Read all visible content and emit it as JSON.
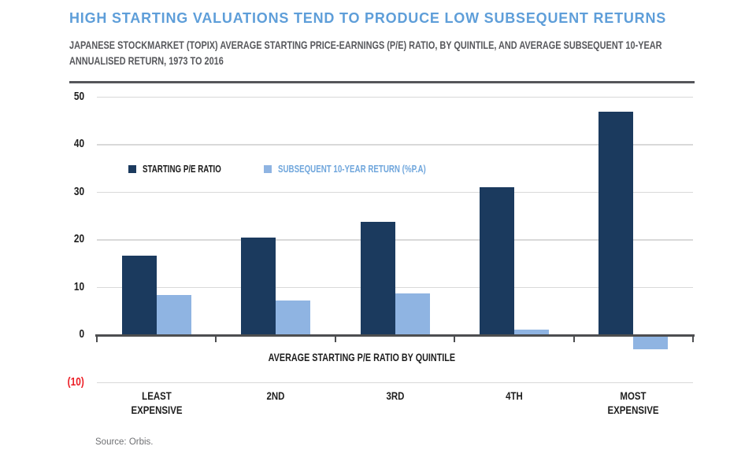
{
  "header": {
    "title": "HIGH STARTING VALUATIONS TEND TO PRODUCE LOW SUBSEQUENT RETURNS"
  },
  "chart_data": {
    "type": "bar",
    "title": "HIGH STARTING VALUATIONS TEND TO PRODUCE LOW SUBSEQUENT RETURNS",
    "subtitle_lines": [
      "JAPANESE STOCKMARKET (TOPIX) AVERAGE STARTING PRICE-EARNINGS (P/E) RATIO, BY QUINTILE, AND AVERAGE SUBSEQUENT 10-YEAR",
      "ANNUALISED RETURN, 1973 TO 2016"
    ],
    "categories": [
      [
        "LEAST",
        "EXPENSIVE"
      ],
      [
        "2ND"
      ],
      [
        "3RD"
      ],
      [
        "4TH"
      ],
      [
        "MOST",
        "EXPENSIVE"
      ]
    ],
    "series": [
      {
        "name": "STARTING P/E RATIO",
        "color": "#1B3A5E",
        "values": [
          16.7,
          20.5,
          23.8,
          31.1,
          46.9
        ]
      },
      {
        "name": "SUBSEQUENT 10-YEAR RETURN (%P.A)",
        "color": "#8FB4E2",
        "values": [
          8.4,
          7.3,
          8.7,
          1.2,
          -2.9
        ]
      }
    ],
    "xlabel": "AVERAGE STARTING P/E RATIO BY QUINTILE",
    "ylim": [
      -10,
      50
    ],
    "y_ticks": [
      {
        "label": "50",
        "value": 50
      },
      {
        "label": "40",
        "value": 40
      },
      {
        "label": "30",
        "value": 30
      },
      {
        "label": "20",
        "value": 20
      },
      {
        "label": "10",
        "value": 10
      },
      {
        "label": "0",
        "value": 0
      },
      {
        "label": "(10)",
        "value": -10,
        "negative": true
      }
    ],
    "grid": true,
    "legend_position": "inside-top-left"
  },
  "legend": [
    {
      "label": "STARTING P/E RATIO",
      "color": "#1B3A5E",
      "text_color": "#1A1A1A"
    },
    {
      "label": "SUBSEQUENT 10-YEAR RETURN (%P.A)",
      "color": "#8FB4E2",
      "text_color": "#6FA6DC"
    }
  ],
  "footer": {
    "source": "Source: Orbis."
  },
  "colors": {
    "title": "#5E9ED9",
    "subtitle": "#57585C",
    "rule": "#55565A",
    "grid": "#D9D9D9",
    "axis": "#4D4E50",
    "text": "#1E1E1E",
    "negative": "#EC1C24",
    "source": "#6F7073"
  }
}
